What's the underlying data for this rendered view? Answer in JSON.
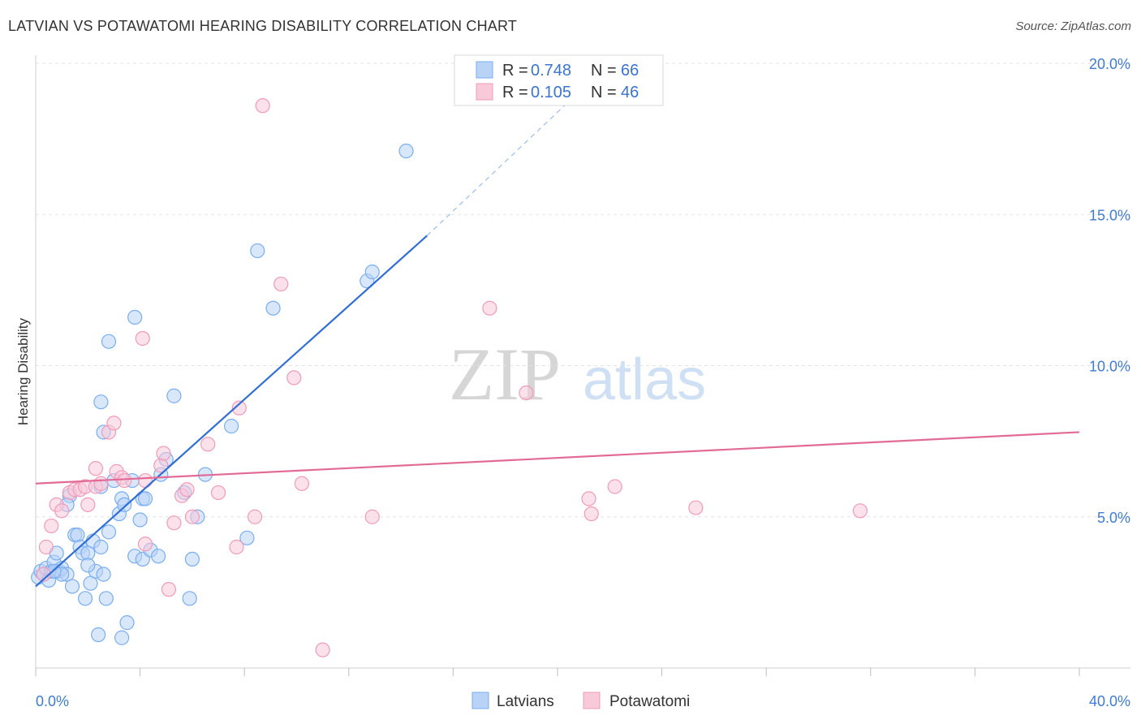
{
  "header": {
    "title": "LATVIAN VS POTAWATOMI HEARING DISABILITY CORRELATION CHART",
    "source": "Source: ZipAtlas.com"
  },
  "watermark": {
    "zip": "ZIP",
    "atlas": "atlas"
  },
  "chart_data": {
    "type": "scatter",
    "title": "LATVIAN VS POTAWATOMI HEARING DISABILITY CORRELATION CHART",
    "xlabel": "",
    "ylabel": "Hearing Disability",
    "xlim": [
      0,
      40
    ],
    "ylim": [
      0,
      20
    ],
    "x_tick_labels": [
      "0.0%",
      "40.0%"
    ],
    "y_ticks": [
      5,
      10,
      15,
      20
    ],
    "y_tick_labels": [
      "5.0%",
      "10.0%",
      "15.0%",
      "20.0%"
    ],
    "grid": true,
    "legend": {
      "placement": "top-center",
      "entries": [
        {
          "r_label": "R =",
          "r": "0.748",
          "n_label": "N =",
          "n": "66",
          "color": "#7aaef0",
          "fill": "#b9d3f7"
        },
        {
          "r_label": "R =",
          "r": "0.105",
          "n_label": "N =",
          "n": "46",
          "color": "#f19bb8",
          "fill": "#f8c9d9"
        }
      ]
    },
    "bottom_legend": [
      "Latvians",
      "Potawatomi"
    ],
    "series": [
      {
        "name": "Latvians",
        "color": "#7aaef0",
        "fill": "#b9d3f7",
        "trend_color": "#2f6fd6",
        "trend": {
          "x_solid": [
            0,
            15.0
          ],
          "y_solid": [
            2.7,
            14.3
          ],
          "x_dashed": [
            15.0,
            21.0
          ],
          "y_dashed": [
            14.3,
            19.2
          ]
        },
        "points": [
          [
            0.1,
            3.0
          ],
          [
            0.2,
            3.2
          ],
          [
            0.3,
            3.1
          ],
          [
            0.4,
            3.3
          ],
          [
            0.5,
            2.9
          ],
          [
            0.6,
            3.2
          ],
          [
            0.7,
            3.5
          ],
          [
            0.8,
            3.2
          ],
          [
            0.9,
            3.2
          ],
          [
            1.0,
            3.3
          ],
          [
            0.8,
            3.8
          ],
          [
            1.2,
            3.1
          ],
          [
            1.3,
            5.7
          ],
          [
            1.4,
            2.7
          ],
          [
            1.2,
            5.4
          ],
          [
            1.5,
            4.4
          ],
          [
            1.6,
            4.4
          ],
          [
            1.7,
            4.0
          ],
          [
            1.8,
            3.8
          ],
          [
            1.9,
            2.3
          ],
          [
            2.0,
            3.8
          ],
          [
            2.1,
            2.8
          ],
          [
            2.2,
            4.2
          ],
          [
            2.3,
            3.2
          ],
          [
            2.4,
            1.1
          ],
          [
            2.5,
            4.0
          ],
          [
            2.6,
            3.1
          ],
          [
            2.7,
            2.3
          ],
          [
            2.8,
            4.5
          ],
          [
            2.5,
            6.0
          ],
          [
            2.5,
            8.8
          ],
          [
            2.6,
            7.8
          ],
          [
            2.8,
            10.8
          ],
          [
            3.0,
            6.2
          ],
          [
            3.2,
            5.1
          ],
          [
            3.3,
            5.6
          ],
          [
            3.4,
            5.4
          ],
          [
            3.5,
            1.5
          ],
          [
            3.3,
            1.0
          ],
          [
            3.7,
            6.2
          ],
          [
            3.8,
            11.6
          ],
          [
            3.8,
            3.7
          ],
          [
            4.0,
            4.9
          ],
          [
            4.1,
            3.6
          ],
          [
            4.1,
            5.6
          ],
          [
            4.4,
            3.9
          ],
          [
            4.7,
            3.7
          ],
          [
            4.8,
            6.4
          ],
          [
            5.0,
            6.9
          ],
          [
            5.3,
            9.0
          ],
          [
            5.7,
            5.8
          ],
          [
            6.0,
            3.6
          ],
          [
            5.9,
            2.3
          ],
          [
            6.2,
            5.0
          ],
          [
            6.5,
            6.4
          ],
          [
            7.5,
            8.0
          ],
          [
            8.1,
            4.3
          ],
          [
            8.5,
            13.8
          ],
          [
            9.1,
            11.9
          ],
          [
            12.7,
            12.8
          ],
          [
            12.9,
            13.1
          ],
          [
            14.2,
            17.1
          ],
          [
            4.2,
            5.6
          ],
          [
            2.0,
            3.4
          ],
          [
            1.0,
            3.1
          ],
          [
            0.7,
            3.2
          ]
        ]
      },
      {
        "name": "Potawatomi",
        "color": "#f19bb8",
        "fill": "#f8c9d9",
        "trend_color": "#e26b96",
        "trend": {
          "x_solid": [
            0,
            40
          ],
          "y_solid": [
            6.1,
            7.8
          ]
        },
        "points": [
          [
            0.3,
            3.1
          ],
          [
            0.4,
            4.0
          ],
          [
            0.6,
            4.7
          ],
          [
            0.8,
            5.4
          ],
          [
            1.0,
            5.2
          ],
          [
            1.3,
            5.8
          ],
          [
            1.5,
            5.9
          ],
          [
            1.7,
            5.9
          ],
          [
            1.9,
            6.0
          ],
          [
            2.0,
            5.4
          ],
          [
            2.3,
            6.0
          ],
          [
            2.3,
            6.6
          ],
          [
            2.5,
            6.1
          ],
          [
            2.8,
            7.8
          ],
          [
            3.0,
            8.1
          ],
          [
            3.1,
            6.5
          ],
          [
            3.3,
            6.3
          ],
          [
            3.4,
            6.2
          ],
          [
            4.2,
            6.2
          ],
          [
            4.1,
            10.9
          ],
          [
            4.2,
            4.1
          ],
          [
            4.8,
            6.7
          ],
          [
            4.9,
            7.1
          ],
          [
            5.1,
            2.6
          ],
          [
            5.3,
            4.8
          ],
          [
            5.6,
            5.7
          ],
          [
            5.8,
            5.9
          ],
          [
            6.0,
            5.0
          ],
          [
            6.6,
            7.4
          ],
          [
            7.0,
            5.8
          ],
          [
            7.7,
            4.0
          ],
          [
            7.8,
            8.6
          ],
          [
            8.4,
            5.0
          ],
          [
            8.7,
            18.6
          ],
          [
            9.4,
            12.7
          ],
          [
            9.9,
            9.6
          ],
          [
            10.2,
            6.1
          ],
          [
            11.0,
            0.6
          ],
          [
            12.9,
            5.0
          ],
          [
            17.4,
            11.9
          ],
          [
            18.8,
            9.1
          ],
          [
            21.2,
            5.6
          ],
          [
            21.3,
            5.1
          ],
          [
            22.2,
            6.0
          ],
          [
            25.3,
            5.3
          ],
          [
            31.6,
            5.2
          ]
        ]
      }
    ]
  }
}
